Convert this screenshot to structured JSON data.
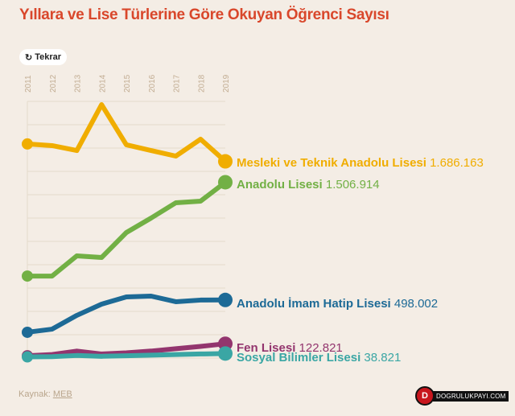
{
  "chart_data": {
    "type": "line",
    "title": "Yıllara ve Lise Türlerine Göre Okuyan Öğrenci Sayısı",
    "x": [
      "2011",
      "2012",
      "2013",
      "2014",
      "2015",
      "2016",
      "2017",
      "2018",
      "2019"
    ],
    "ylim": [
      0,
      2200000
    ],
    "grid": true,
    "series": [
      {
        "name": "Mesleki ve Teknik Anadolu Lisesi",
        "value_label": "1.686.163",
        "color": "#f0ad00",
        "values": [
          1835000,
          1821000,
          1779000,
          2172000,
          1828000,
          1779000,
          1731000,
          1876000,
          1686163
        ]
      },
      {
        "name": "Anadolu Lisesi",
        "value_label": "1.506.914",
        "color": "#72b045",
        "values": [
          703000,
          703000,
          876000,
          862000,
          1076000,
          1200000,
          1331000,
          1345000,
          1506914
        ]
      },
      {
        "name": "Anadolu İmam Hatip Lisesi",
        "value_label": "498.002",
        "color": "#1d6a96",
        "values": [
          221000,
          248000,
          366000,
          462000,
          524000,
          531000,
          483000,
          497000,
          498002
        ]
      },
      {
        "name": "Fen Lisesi",
        "value_label": "122.821",
        "color": "#93356e",
        "values": [
          20000,
          30000,
          60000,
          35000,
          45000,
          60000,
          80000,
          100000,
          122821
        ]
      },
      {
        "name": "Sosyal Bilimler Lisesi",
        "value_label": "38.821",
        "color": "#3aa6a4",
        "values": [
          10000,
          12000,
          22000,
          15000,
          20000,
          25000,
          30000,
          35000,
          38821
        ]
      }
    ]
  },
  "replay_label": "Tekrar",
  "source_label": "Kaynak:",
  "source_link": "MEB",
  "logo_text": "DOGRULUKPAYI.COM"
}
